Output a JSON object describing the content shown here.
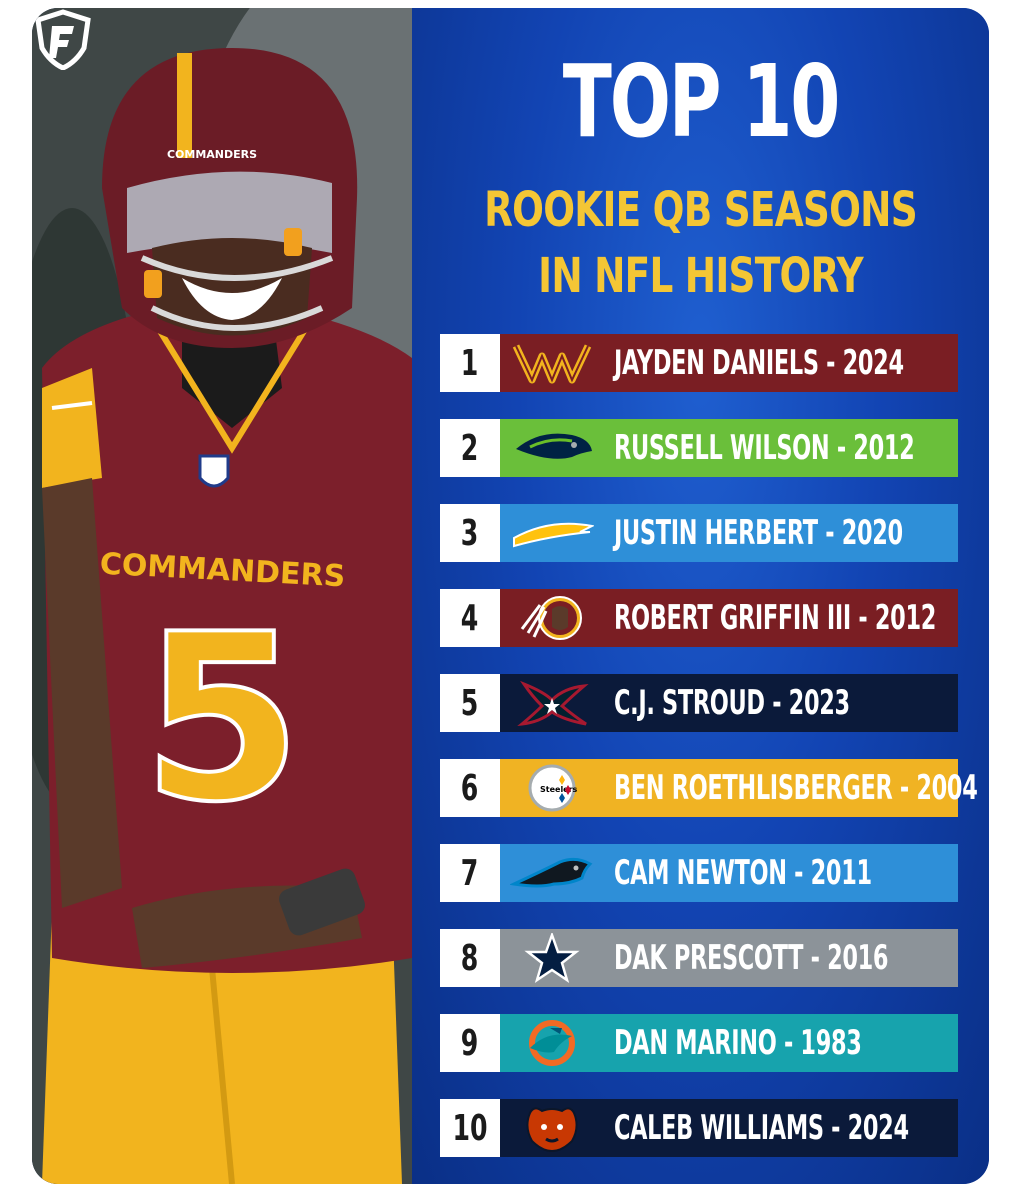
{
  "header": {
    "title": "TOP 10",
    "subtitle_line1": "ROOKIE QB SEASONS",
    "subtitle_line2": "IN NFL HISTORY"
  },
  "colors": {
    "panel_blue": "#1244b3",
    "gold": "#f4c635"
  },
  "rankings": [
    {
      "rank": "1",
      "label": "JAYDEN DANIELS - 2024",
      "team_icon": "commanders-w-logo-icon",
      "bar_color": "#7a1e23"
    },
    {
      "rank": "2",
      "label": "RUSSELL WILSON - 2012",
      "team_icon": "seahawks-logo-icon",
      "bar_color": "#6abf3a"
    },
    {
      "rank": "3",
      "label": "JUSTIN HERBERT - 2020",
      "team_icon": "chargers-bolt-icon",
      "bar_color": "#2e8fd8"
    },
    {
      "rank": "4",
      "label": "ROBERT GRIFFIN III - 2012",
      "team_icon": "redskins-logo-icon",
      "bar_color": "#7a1e23"
    },
    {
      "rank": "5",
      "label": "C.J. STROUD - 2023",
      "team_icon": "texans-logo-icon",
      "bar_color": "#0b1a3a"
    },
    {
      "rank": "6",
      "label": "BEN ROETHLISBERGER - 2004",
      "team_icon": "steelers-logo-icon",
      "bar_color": "#f0b323"
    },
    {
      "rank": "7",
      "label": "CAM NEWTON - 2011",
      "team_icon": "panthers-logo-icon",
      "bar_color": "#2e8fd8"
    },
    {
      "rank": "8",
      "label": "DAK PRESCOTT - 2016",
      "team_icon": "cowboys-star-icon",
      "bar_color": "#8c9399"
    },
    {
      "rank": "9",
      "label": "DAN MARINO - 1983",
      "team_icon": "dolphins-logo-icon",
      "bar_color": "#17a3ad"
    },
    {
      "rank": "10",
      "label": "CALEB WILLIAMS - 2024",
      "team_icon": "bears-logo-icon",
      "bar_color": "#0b1a3a"
    }
  ],
  "photo": {
    "jersey_text": "COMMANDERS",
    "jersey_number": "5",
    "helmet_text": "COMMANDERS"
  }
}
